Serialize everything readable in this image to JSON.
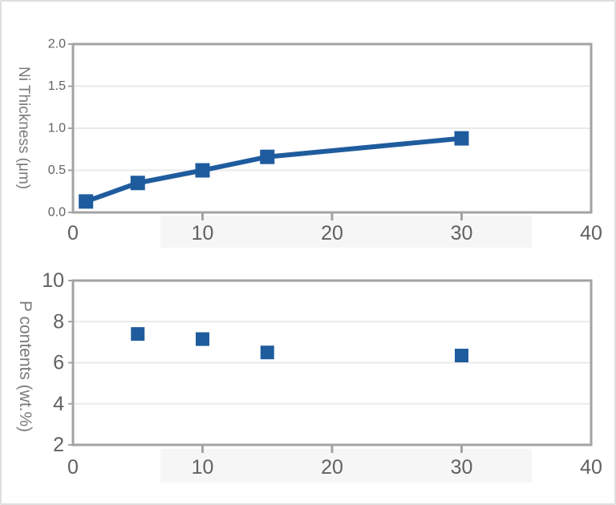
{
  "page": {
    "background": "#ffffff",
    "frame_border_color": "#dfdfdf"
  },
  "colors": {
    "series": "#1f5c9e",
    "axis_line": "#a3a3a3",
    "tick_label": "#616161",
    "axis_title": "#7b7b7b",
    "gridline": "#eaeaea",
    "label_band": "#f6f6f6"
  },
  "chart_data": [
    {
      "type": "line",
      "title": "",
      "xlabel": "",
      "ylabel": "Ni Thickness (μm)",
      "x": [
        1,
        5,
        10,
        15,
        30
      ],
      "values": [
        0.13,
        0.35,
        0.5,
        0.66,
        0.88
      ],
      "xlim": [
        0,
        40
      ],
      "ylim": [
        0,
        2
      ],
      "xticks": [
        0,
        10,
        20,
        30,
        40
      ],
      "xtick_labels": [
        "0",
        "10",
        "20",
        "30",
        "40"
      ],
      "yticks": [
        0,
        0.5,
        1,
        1.5,
        2
      ],
      "ytick_labels": [
        "0.0",
        "0.5",
        "1.0",
        "1.5",
        "2.0"
      ],
      "marker": "square",
      "show_line": true,
      "grid": true,
      "legend_position": "none"
    },
    {
      "type": "scatter",
      "title": "",
      "xlabel": "",
      "ylabel": "P contents (wt.%)",
      "x": [
        5,
        10,
        15,
        30
      ],
      "values": [
        7.4,
        7.15,
        6.5,
        6.35
      ],
      "xlim": [
        0,
        40
      ],
      "ylim": [
        2,
        10
      ],
      "xticks": [
        0,
        10,
        20,
        30,
        40
      ],
      "xtick_labels": [
        "0",
        "10",
        "20",
        "30",
        "40"
      ],
      "yticks": [
        2,
        4,
        6,
        8,
        10
      ],
      "ytick_labels": [
        "2",
        "4",
        "6",
        "8",
        "10"
      ],
      "marker": "square",
      "show_line": false,
      "grid": true,
      "legend_position": "none"
    }
  ]
}
